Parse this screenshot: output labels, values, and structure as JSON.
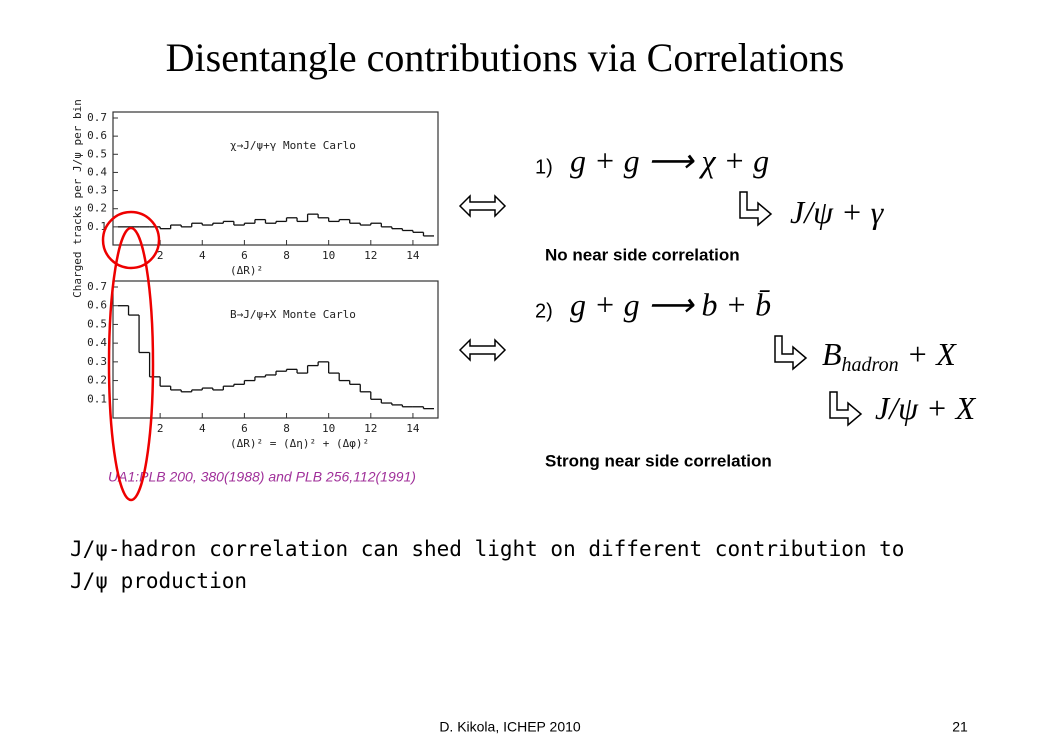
{
  "title": "Disentangle contributions via Correlations",
  "plots": [
    {
      "type": "histogram",
      "annotation": "χ→J/ψ+γ  Monte Carlo",
      "ylabel": "Charged tracks per J/ψ per bin",
      "xlabel": "(ΔR)²",
      "xlim": [
        0,
        15
      ],
      "xticks": [
        2,
        4,
        6,
        8,
        10,
        12,
        14
      ],
      "ylim": [
        0,
        0.7
      ],
      "yticks": [
        0.1,
        0.2,
        0.3,
        0.4,
        0.5,
        0.6,
        0.7
      ],
      "bins": [
        0,
        0.5,
        1,
        1.5,
        2,
        2.5,
        3,
        3.5,
        4,
        4.5,
        5,
        5.5,
        6,
        6.5,
        7,
        7.5,
        8,
        8.5,
        9,
        9.5,
        10,
        10.5,
        11,
        11.5,
        12,
        12.5,
        13,
        13.5,
        14,
        14.5,
        15
      ],
      "values": [
        0.1,
        0.1,
        0.1,
        0.1,
        0.09,
        0.11,
        0.1,
        0.12,
        0.11,
        0.12,
        0.13,
        0.11,
        0.12,
        0.14,
        0.12,
        0.13,
        0.15,
        0.13,
        0.17,
        0.15,
        0.13,
        0.14,
        0.12,
        0.11,
        0.12,
        0.1,
        0.09,
        0.08,
        0.07,
        0.05
      ]
    },
    {
      "type": "histogram",
      "annotation": "B→J/ψ+X  Monte Carlo",
      "xlabel": "(ΔR)² = (Δη)² + (Δφ)²",
      "xlim": [
        0,
        15
      ],
      "xticks": [
        2,
        4,
        6,
        8,
        10,
        12,
        14
      ],
      "ylim": [
        0,
        0.7
      ],
      "yticks": [
        0.1,
        0.2,
        0.3,
        0.4,
        0.5,
        0.6,
        0.7
      ],
      "bins": [
        0,
        0.5,
        1,
        1.5,
        2,
        2.5,
        3,
        3.5,
        4,
        4.5,
        5,
        5.5,
        6,
        6.5,
        7,
        7.5,
        8,
        8.5,
        9,
        9.5,
        10,
        10.5,
        11,
        11.5,
        12,
        12.5,
        13,
        13.5,
        14,
        14.5,
        15
      ],
      "values": [
        0.6,
        0.55,
        0.35,
        0.22,
        0.17,
        0.15,
        0.14,
        0.15,
        0.16,
        0.15,
        0.17,
        0.18,
        0.2,
        0.22,
        0.23,
        0.25,
        0.26,
        0.24,
        0.28,
        0.3,
        0.24,
        0.2,
        0.18,
        0.14,
        0.1,
        0.08,
        0.07,
        0.06,
        0.06,
        0.05
      ]
    }
  ],
  "citation": "UA1:PLB 200, 380(1988) and PLB 256,112(1991)",
  "reactions": [
    {
      "label": "1)",
      "equation": "g + g ⟶ χ + g",
      "decays": [
        {
          "main": "J/ψ",
          "rest": " + γ"
        }
      ],
      "note": "No near side correlation"
    },
    {
      "label": "2)",
      "equation": "g + g ⟶ b + b̄",
      "decays": [
        {
          "main": "B",
          "sub": "hadron",
          "rest": " + X"
        },
        {
          "main": "J/ψ",
          "rest": " + X"
        }
      ],
      "note": "Strong near side correlation"
    }
  ],
  "body": [
    "J/ψ-hadron correlation can shed light on different contribution to",
    "J/ψ production"
  ],
  "footer": {
    "author": "D. Kikola, ICHEP 2010",
    "page": "21"
  }
}
